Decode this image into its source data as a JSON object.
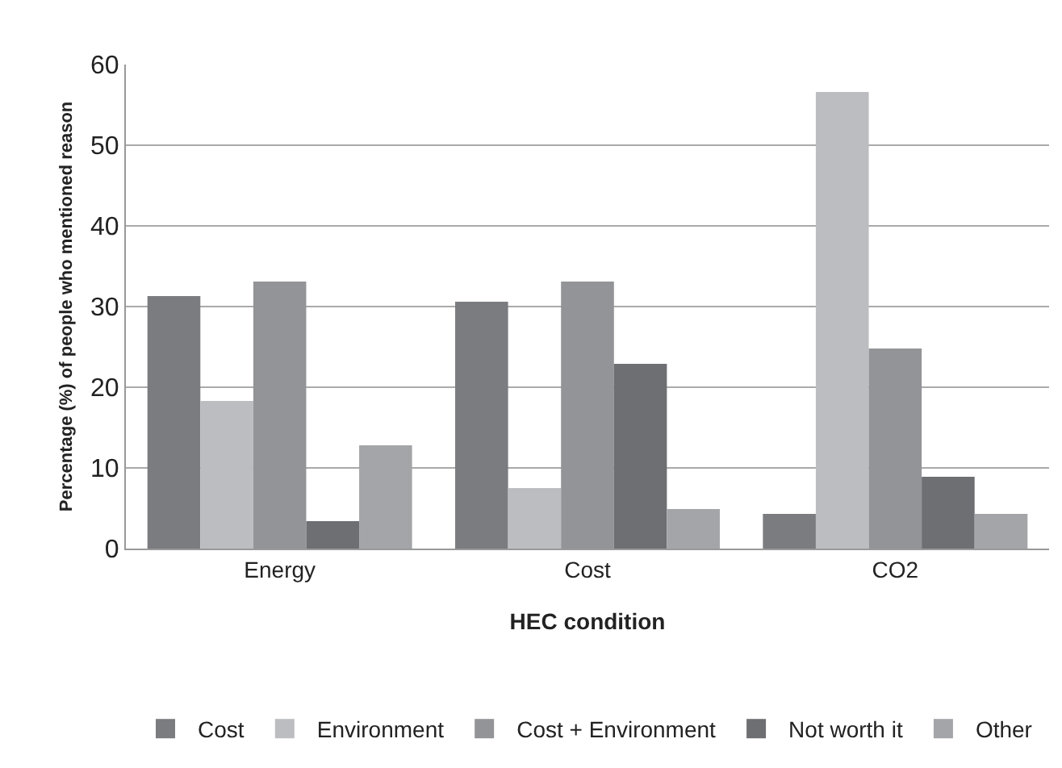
{
  "chart_data": {
    "type": "bar",
    "xlabel": "HEC condition",
    "ylabel": "Percentage (%) of people who mentioned reason",
    "categories": [
      "Energy",
      "Cost",
      "CO2"
    ],
    "series": [
      {
        "name": "Cost",
        "color": "#7b7c80",
        "values": [
          31.3,
          30.6,
          4.3
        ]
      },
      {
        "name": "Environment",
        "color": "#bcbdc1",
        "values": [
          18.3,
          7.5,
          56.6
        ]
      },
      {
        "name": "Cost + Environment",
        "color": "#939498",
        "values": [
          33.1,
          33.1,
          24.8
        ]
      },
      {
        "name": "Not worth it",
        "color": "#6e6f73",
        "values": [
          3.4,
          22.9,
          8.9
        ]
      },
      {
        "name": "Other",
        "color": "#a4a5a8",
        "values": [
          12.8,
          4.9,
          4.3
        ]
      }
    ],
    "ylim": [
      0,
      60
    ],
    "yticks": [
      0,
      10,
      20,
      30,
      40,
      50,
      60
    ],
    "grid": "y",
    "legend": "bottom"
  }
}
